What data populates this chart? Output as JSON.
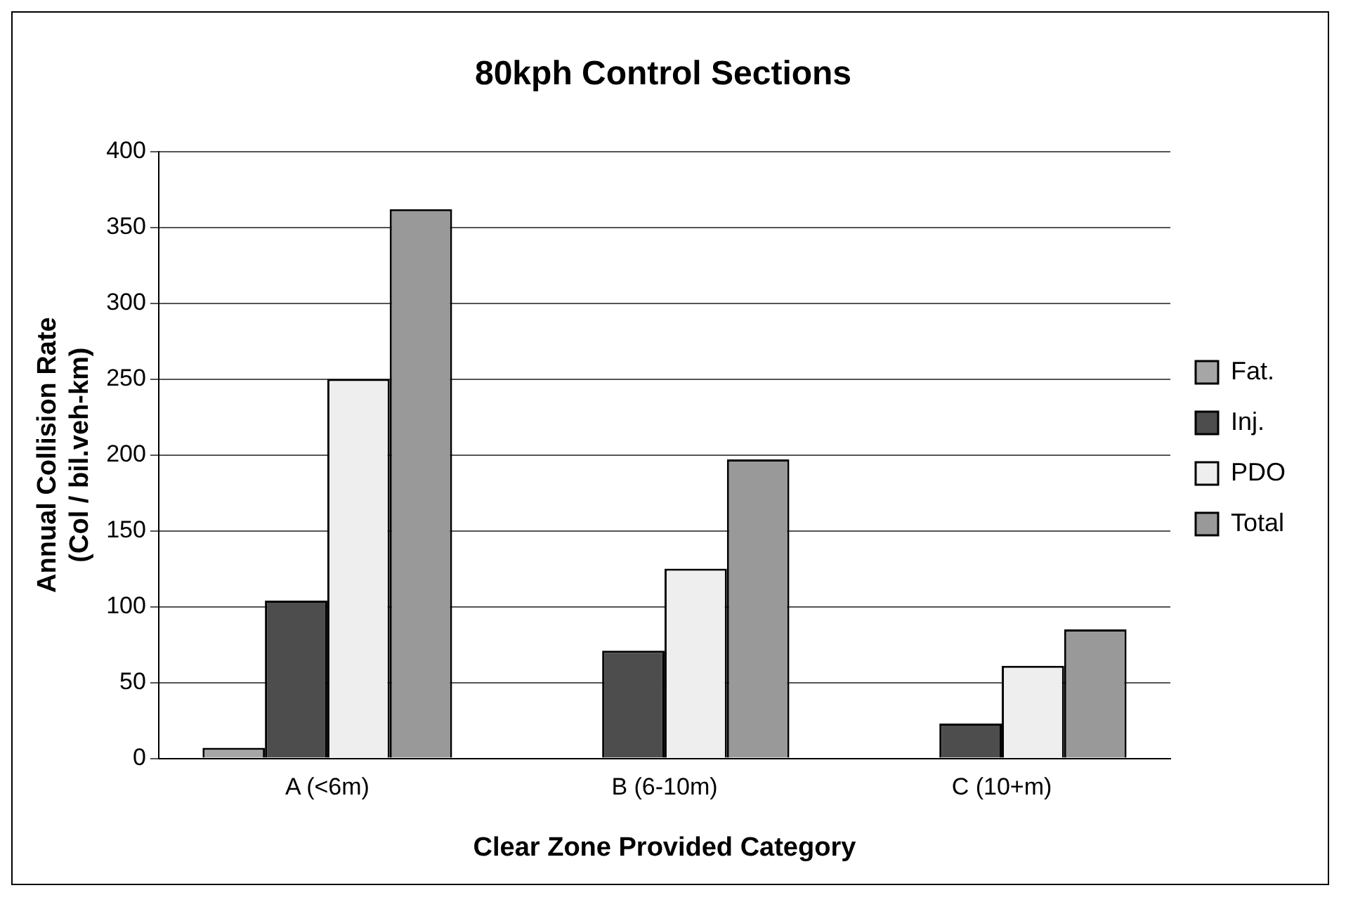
{
  "chart_data": {
    "type": "bar",
    "title": "80kph Control Sections",
    "xlabel": "Clear Zone Provided Category",
    "ylabel": "Annual Collision Rate\n(Col / bil.veh-km)",
    "categories": [
      "A (<6m)",
      "B (6-10m)",
      "C (10+m)"
    ],
    "series": [
      {
        "name": "Fat.",
        "color": "#a6a6a6",
        "values": [
          7,
          0,
          0
        ]
      },
      {
        "name": "Inj.",
        "color": "#4d4d4d",
        "values": [
          104,
          71,
          23
        ]
      },
      {
        "name": "PDO",
        "color": "#eeeeee",
        "values": [
          250,
          125,
          61
        ]
      },
      {
        "name": "Total",
        "color": "#999999",
        "values": [
          362,
          197,
          85
        ]
      }
    ],
    "ylim": [
      0,
      400
    ],
    "yticks": [
      0,
      50,
      100,
      150,
      200,
      250,
      300,
      350,
      400
    ],
    "grid": "y",
    "legend": "right"
  }
}
